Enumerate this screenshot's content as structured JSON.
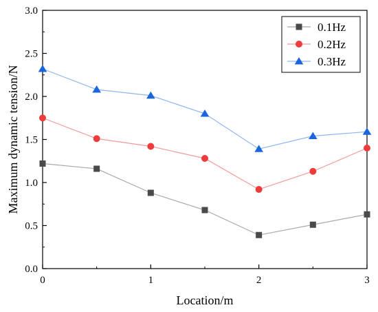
{
  "chart_data": {
    "type": "line",
    "title": "",
    "xlabel": "Location/m",
    "ylabel": "Maximum dynamic tension/N",
    "xlim": [
      0,
      3
    ],
    "ylim": [
      0,
      3.0
    ],
    "xticks": [
      0,
      1,
      2,
      3
    ],
    "xtick_labels": [
      "0",
      "1",
      "2",
      "3"
    ],
    "yticks": [
      0,
      0.5,
      1.0,
      1.5,
      2.0,
      2.5,
      3.0
    ],
    "ytick_labels": [
      "0.0",
      "0.5",
      "1.0",
      "1.5",
      "2.0",
      "2.5",
      "3.0"
    ],
    "grid": false,
    "legend_position": "top-right",
    "x": [
      0,
      0.5,
      1,
      1.5,
      2,
      2.5,
      3
    ],
    "series": [
      {
        "name": "0.1Hz",
        "values": [
          1.22,
          1.16,
          0.88,
          0.68,
          0.39,
          0.51,
          0.63
        ],
        "line_color": "#a8a8a8",
        "marker_color": "#4a4a4a",
        "marker": "square"
      },
      {
        "name": "0.2Hz",
        "values": [
          1.75,
          1.51,
          1.42,
          1.28,
          0.92,
          1.13,
          1.4
        ],
        "line_color": "#f39a9a",
        "marker_color": "#ee3b3b",
        "marker": "circle"
      },
      {
        "name": "0.3Hz",
        "values": [
          2.32,
          2.08,
          2.01,
          1.8,
          1.39,
          1.54,
          1.59
        ],
        "line_color": "#8fb6ef",
        "marker_color": "#1a66dd",
        "marker": "triangle"
      }
    ]
  }
}
